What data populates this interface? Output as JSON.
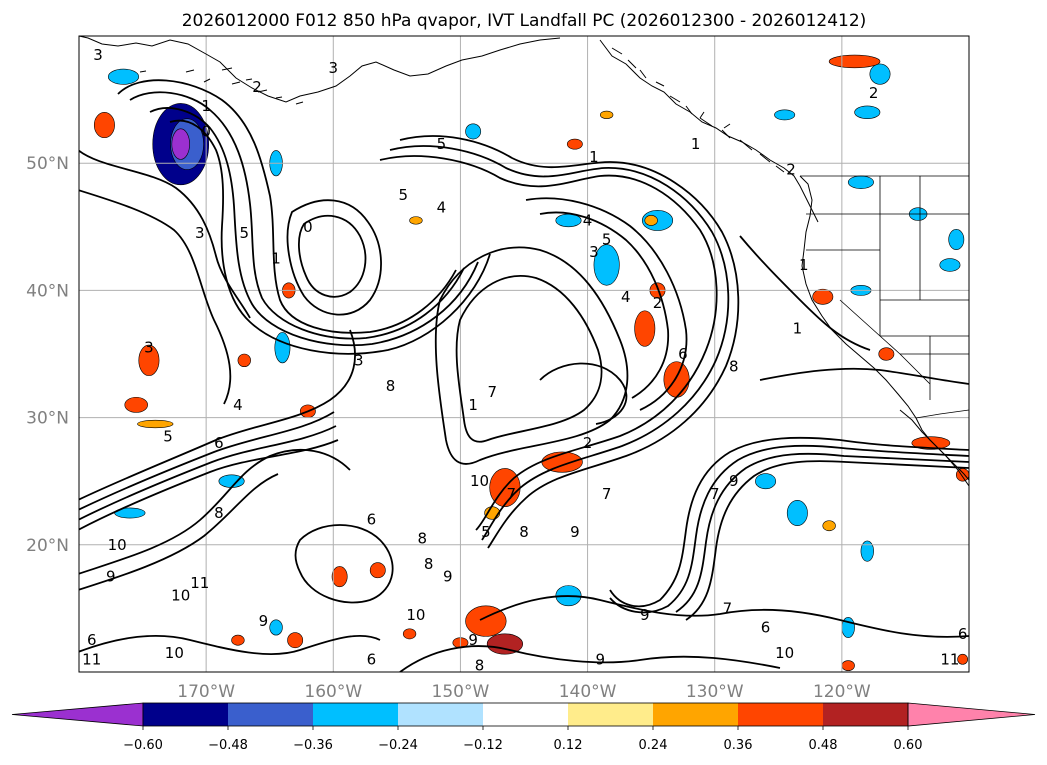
{
  "title": "2026012000 F012 850 hPa qvapor, IVT Landfall PC (2026012300 - 2026012412)",
  "map": {
    "lon_range": [
      -180,
      -110
    ],
    "lat_range": [
      10,
      60
    ],
    "grid": true,
    "lat_ticks": [
      {
        "value": 50,
        "label": "50°N"
      },
      {
        "value": 40,
        "label": "40°N"
      },
      {
        "value": 30,
        "label": "30°N"
      },
      {
        "value": 20,
        "label": "20°N"
      }
    ],
    "lon_ticks": [
      {
        "value": -170,
        "label": "170°W"
      },
      {
        "value": -160,
        "label": "160°W"
      },
      {
        "value": -150,
        "label": "150°W"
      },
      {
        "value": -140,
        "label": "140°W"
      },
      {
        "value": -130,
        "label": "130°W"
      },
      {
        "value": -120,
        "label": "120°W"
      }
    ]
  },
  "colorbar": {
    "extend": "both",
    "bins": [
      {
        "color": "#9b30d0"
      },
      {
        "color": "#00008b"
      },
      {
        "color": "#3a5fcd"
      },
      {
        "color": "#00bfff"
      },
      {
        "color": "#b0e2ff"
      },
      {
        "color": "#ffffff"
      },
      {
        "color": "#ffec8b"
      },
      {
        "color": "#ffa500"
      },
      {
        "color": "#ff4500"
      },
      {
        "color": "#b22222"
      },
      {
        "color": "#ff82ab"
      }
    ],
    "ticks": [
      "−0.60",
      "−0.48",
      "−0.36",
      "−0.24",
      "−0.12",
      "0.12",
      "0.24",
      "0.36",
      "0.48",
      "0.60"
    ]
  },
  "contour_labels": [
    {
      "text": "3",
      "lon": -178.5,
      "lat": 58.5
    },
    {
      "text": "1",
      "lon": -170,
      "lat": 54.5
    },
    {
      "text": "0",
      "lon": -170,
      "lat": 52.5
    },
    {
      "text": "2",
      "lon": -166,
      "lat": 56
    },
    {
      "text": "3",
      "lon": -160,
      "lat": 57.5
    },
    {
      "text": "5",
      "lon": -151.5,
      "lat": 51.5
    },
    {
      "text": "5",
      "lon": -154.5,
      "lat": 47.5
    },
    {
      "text": "4",
      "lon": -151.5,
      "lat": 46.5
    },
    {
      "text": "1",
      "lon": -139.5,
      "lat": 50.5
    },
    {
      "text": "1",
      "lon": -131.5,
      "lat": 51.5
    },
    {
      "text": "2",
      "lon": -124,
      "lat": 49.5
    },
    {
      "text": "2",
      "lon": -117.5,
      "lat": 55.5
    },
    {
      "text": "4",
      "lon": -140,
      "lat": 45.5
    },
    {
      "text": "5",
      "lon": -138.5,
      "lat": 44
    },
    {
      "text": "3",
      "lon": -139.5,
      "lat": 43
    },
    {
      "text": "4",
      "lon": -137,
      "lat": 39.5
    },
    {
      "text": "2",
      "lon": -134.5,
      "lat": 39
    },
    {
      "text": "1",
      "lon": -123,
      "lat": 42
    },
    {
      "text": "1",
      "lon": -123.5,
      "lat": 37
    },
    {
      "text": "3",
      "lon": -170.5,
      "lat": 44.5
    },
    {
      "text": "5",
      "lon": -167,
      "lat": 44.5
    },
    {
      "text": "1",
      "lon": -164.5,
      "lat": 42.5
    },
    {
      "text": "0",
      "lon": -162,
      "lat": 45
    },
    {
      "text": "3",
      "lon": -174.5,
      "lat": 35.5
    },
    {
      "text": "3",
      "lon": -158,
      "lat": 34.5
    },
    {
      "text": "4",
      "lon": -167.5,
      "lat": 31
    },
    {
      "text": "6",
      "lon": -169,
      "lat": 28
    },
    {
      "text": "5",
      "lon": -173,
      "lat": 28.5
    },
    {
      "text": "8",
      "lon": -155.5,
      "lat": 32.5
    },
    {
      "text": "7",
      "lon": -147.5,
      "lat": 32
    },
    {
      "text": "1",
      "lon": -149,
      "lat": 31
    },
    {
      "text": "6",
      "lon": -132.5,
      "lat": 35
    },
    {
      "text": "8",
      "lon": -128.5,
      "lat": 34
    },
    {
      "text": "7",
      "lon": -146,
      "lat": 24
    },
    {
      "text": "10",
      "lon": -148.5,
      "lat": 25
    },
    {
      "text": "2",
      "lon": -140,
      "lat": 28
    },
    {
      "text": "9",
      "lon": -128.5,
      "lat": 25
    },
    {
      "text": "7",
      "lon": -130,
      "lat": 24
    },
    {
      "text": "7",
      "lon": -138.5,
      "lat": 24
    },
    {
      "text": "9",
      "lon": -141,
      "lat": 21
    },
    {
      "text": "8",
      "lon": -153,
      "lat": 20.5
    },
    {
      "text": "8",
      "lon": -145,
      "lat": 21
    },
    {
      "text": "5",
      "lon": -148,
      "lat": 21
    },
    {
      "text": "6",
      "lon": -157,
      "lat": 22
    },
    {
      "text": "8",
      "lon": -152.5,
      "lat": 18.5
    },
    {
      "text": "9",
      "lon": -151,
      "lat": 17.5
    },
    {
      "text": "10",
      "lon": -177,
      "lat": 20
    },
    {
      "text": "9",
      "lon": -177.5,
      "lat": 17.5
    },
    {
      "text": "8",
      "lon": -169,
      "lat": 22.5
    },
    {
      "text": "11",
      "lon": -170.5,
      "lat": 17
    },
    {
      "text": "10",
      "lon": -172,
      "lat": 16
    },
    {
      "text": "9",
      "lon": -165.5,
      "lat": 14
    },
    {
      "text": "6",
      "lon": -179,
      "lat": 12.5
    },
    {
      "text": "11",
      "lon": -179,
      "lat": 11
    },
    {
      "text": "10",
      "lon": -172.5,
      "lat": 11.5
    },
    {
      "text": "10",
      "lon": -153.5,
      "lat": 14.5
    },
    {
      "text": "6",
      "lon": -157,
      "lat": 11
    },
    {
      "text": "9",
      "lon": -149,
      "lat": 12.5
    },
    {
      "text": "8",
      "lon": -148.5,
      "lat": 10.5
    },
    {
      "text": "9",
      "lon": -135.5,
      "lat": 14.5
    },
    {
      "text": "7",
      "lon": -129,
      "lat": 15
    },
    {
      "text": "6",
      "lon": -126,
      "lat": 13.5
    },
    {
      "text": "10",
      "lon": -124.5,
      "lat": 11.5
    },
    {
      "text": "9",
      "lon": -139,
      "lat": 11
    },
    {
      "text": "11",
      "lon": -111.5,
      "lat": 11
    },
    {
      "text": "6",
      "lon": -110.5,
      "lat": 13
    }
  ],
  "shading": [
    {
      "lon": -172,
      "lat": 51.5,
      "rx": 2.2,
      "ry": 3.2,
      "bin": 1
    },
    {
      "lon": -171.5,
      "lat": 51.5,
      "rx": 1.3,
      "ry": 2.0,
      "bin": 2
    },
    {
      "lon": -176.5,
      "lat": 56.8,
      "rx": 1.2,
      "ry": 0.6,
      "bin": 3
    },
    {
      "lon": -149,
      "lat": 52.5,
      "rx": 0.6,
      "ry": 0.6,
      "bin": 3
    },
    {
      "lon": -164.5,
      "lat": 50,
      "rx": 0.5,
      "ry": 1.0,
      "bin": 3
    },
    {
      "lon": -164,
      "lat": 35.5,
      "rx": 0.6,
      "ry": 1.2,
      "bin": 3
    },
    {
      "lon": -141.5,
      "lat": 45.5,
      "rx": 1.0,
      "ry": 0.5,
      "bin": 3
    },
    {
      "lon": -138.5,
      "lat": 42,
      "rx": 1.0,
      "ry": 1.6,
      "bin": 3
    },
    {
      "lon": -134.5,
      "lat": 45.5,
      "rx": 1.2,
      "ry": 0.8,
      "bin": 3
    },
    {
      "lon": -117,
      "lat": 57,
      "rx": 0.8,
      "ry": 0.8,
      "bin": 3
    },
    {
      "lon": -118,
      "lat": 54,
      "rx": 1.0,
      "ry": 0.5,
      "bin": 3
    },
    {
      "lon": -124.5,
      "lat": 53.8,
      "rx": 0.8,
      "ry": 0.4,
      "bin": 3
    },
    {
      "lon": -118.5,
      "lat": 48.5,
      "rx": 1.0,
      "ry": 0.5,
      "bin": 3
    },
    {
      "lon": -114,
      "lat": 46,
      "rx": 0.7,
      "ry": 0.5,
      "bin": 3
    },
    {
      "lon": -111,
      "lat": 44,
      "rx": 0.6,
      "ry": 0.8,
      "bin": 3
    },
    {
      "lon": -111.5,
      "lat": 42,
      "rx": 0.8,
      "ry": 0.5,
      "bin": 3
    },
    {
      "lon": -118.5,
      "lat": 40,
      "rx": 0.8,
      "ry": 0.4,
      "bin": 3
    },
    {
      "lon": -168,
      "lat": 25,
      "rx": 1.0,
      "ry": 0.5,
      "bin": 3
    },
    {
      "lon": -176,
      "lat": 22.5,
      "rx": 1.2,
      "ry": 0.4,
      "bin": 3
    },
    {
      "lon": -126,
      "lat": 25,
      "rx": 0.8,
      "ry": 0.6,
      "bin": 3
    },
    {
      "lon": -123.5,
      "lat": 22.5,
      "rx": 0.8,
      "ry": 1.0,
      "bin": 3
    },
    {
      "lon": -118,
      "lat": 19.5,
      "rx": 0.5,
      "ry": 0.8,
      "bin": 3
    },
    {
      "lon": -141.5,
      "lat": 16,
      "rx": 1.0,
      "ry": 0.8,
      "bin": 3
    },
    {
      "lon": -119.5,
      "lat": 13.5,
      "rx": 0.5,
      "ry": 0.8,
      "bin": 3
    },
    {
      "lon": -164.5,
      "lat": 13.5,
      "rx": 0.5,
      "ry": 0.6,
      "bin": 3
    },
    {
      "lon": -172,
      "lat": 51.5,
      "rx": 0.7,
      "ry": 1.2,
      "bin": 0
    },
    {
      "lon": -178,
      "lat": 53,
      "rx": 0.8,
      "ry": 1.0,
      "bin": 8
    },
    {
      "lon": -174.5,
      "lat": 34.5,
      "rx": 0.8,
      "ry": 1.2,
      "bin": 8
    },
    {
      "lon": -175.5,
      "lat": 31,
      "rx": 0.9,
      "ry": 0.6,
      "bin": 8
    },
    {
      "lon": -174,
      "lat": 29.5,
      "rx": 1.4,
      "ry": 0.3,
      "bin": 7
    },
    {
      "lon": -167,
      "lat": 34.5,
      "rx": 0.5,
      "ry": 0.5,
      "bin": 8
    },
    {
      "lon": -163.5,
      "lat": 40,
      "rx": 0.5,
      "ry": 0.6,
      "bin": 8
    },
    {
      "lon": -162,
      "lat": 30.5,
      "rx": 0.6,
      "ry": 0.5,
      "bin": 8
    },
    {
      "lon": -153.5,
      "lat": 45.5,
      "rx": 0.5,
      "ry": 0.3,
      "bin": 7
    },
    {
      "lon": -135.5,
      "lat": 37,
      "rx": 0.8,
      "ry": 1.4,
      "bin": 8
    },
    {
      "lon": -133,
      "lat": 33,
      "rx": 1.0,
      "ry": 1.4,
      "bin": 8
    },
    {
      "lon": -134.5,
      "lat": 40,
      "rx": 0.6,
      "ry": 0.6,
      "bin": 8
    },
    {
      "lon": -141,
      "lat": 51.5,
      "rx": 0.6,
      "ry": 0.4,
      "bin": 8
    },
    {
      "lon": -138.5,
      "lat": 53.8,
      "rx": 0.5,
      "ry": 0.3,
      "bin": 7
    },
    {
      "lon": -119,
      "lat": 58,
      "rx": 2.0,
      "ry": 0.5,
      "bin": 8
    },
    {
      "lon": -121.5,
      "lat": 39.5,
      "rx": 0.8,
      "ry": 0.6,
      "bin": 8
    },
    {
      "lon": -116.5,
      "lat": 35,
      "rx": 0.6,
      "ry": 0.5,
      "bin": 8
    },
    {
      "lon": -113,
      "lat": 28,
      "rx": 1.5,
      "ry": 0.5,
      "bin": 8
    },
    {
      "lon": -110.5,
      "lat": 25.5,
      "rx": 0.5,
      "ry": 0.5,
      "bin": 8
    },
    {
      "lon": -146.5,
      "lat": 24.5,
      "rx": 1.2,
      "ry": 1.5,
      "bin": 8
    },
    {
      "lon": -142,
      "lat": 26.5,
      "rx": 1.6,
      "ry": 0.8,
      "bin": 8
    },
    {
      "lon": -147.5,
      "lat": 22.5,
      "rx": 0.6,
      "ry": 0.5,
      "bin": 7
    },
    {
      "lon": -148,
      "lat": 14,
      "rx": 1.6,
      "ry": 1.2,
      "bin": 8
    },
    {
      "lon": -146.5,
      "lat": 12.2,
      "rx": 1.4,
      "ry": 0.8,
      "bin": 9
    },
    {
      "lon": -150,
      "lat": 12.3,
      "rx": 0.6,
      "ry": 0.4,
      "bin": 8
    },
    {
      "lon": -159.5,
      "lat": 17.5,
      "rx": 0.6,
      "ry": 0.8,
      "bin": 8
    },
    {
      "lon": -156.5,
      "lat": 18,
      "rx": 0.6,
      "ry": 0.6,
      "bin": 8
    },
    {
      "lon": -167.5,
      "lat": 12.5,
      "rx": 0.5,
      "ry": 0.4,
      "bin": 8
    },
    {
      "lon": -163,
      "lat": 12.5,
      "rx": 0.6,
      "ry": 0.6,
      "bin": 8
    },
    {
      "lon": -154,
      "lat": 13,
      "rx": 0.5,
      "ry": 0.4,
      "bin": 8
    },
    {
      "lon": -119.5,
      "lat": 10.5,
      "rx": 0.5,
      "ry": 0.4,
      "bin": 8
    },
    {
      "lon": -110.5,
      "lat": 11,
      "rx": 0.4,
      "ry": 0.4,
      "bin": 8
    },
    {
      "lon": -135,
      "lat": 45.5,
      "rx": 0.5,
      "ry": 0.4,
      "bin": 7
    },
    {
      "lon": -121,
      "lat": 21.5,
      "rx": 0.5,
      "ry": 0.4,
      "bin": 7
    }
  ]
}
